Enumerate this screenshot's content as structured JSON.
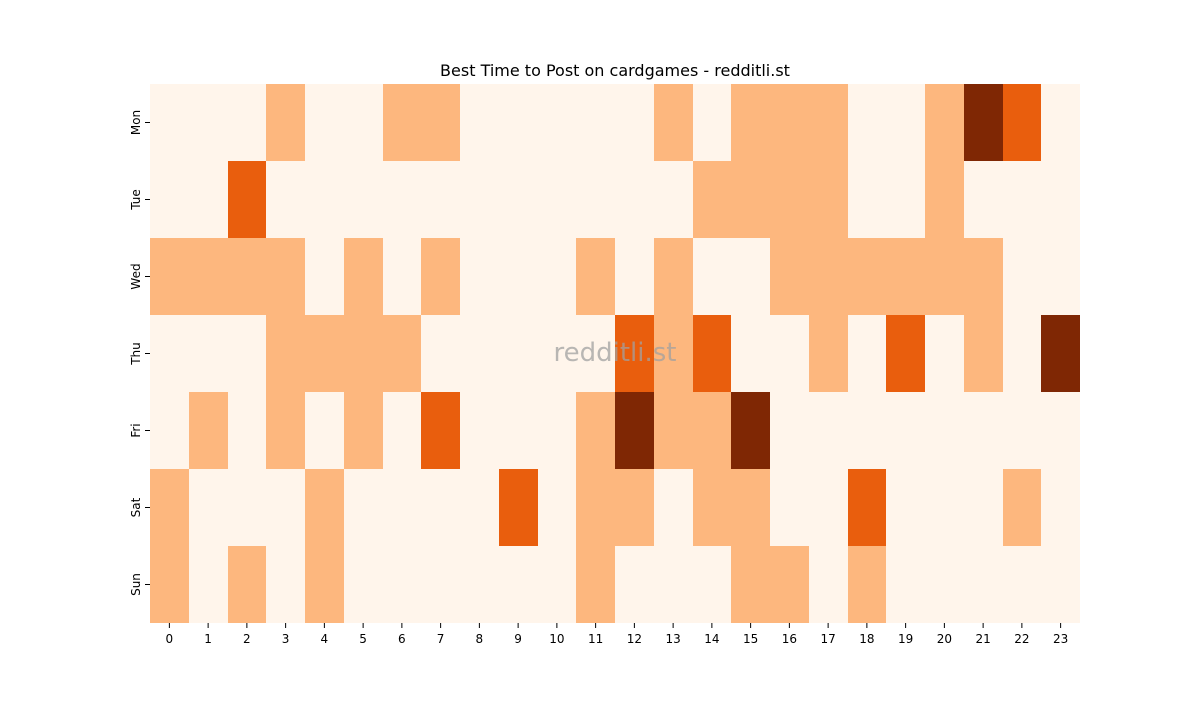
{
  "chart_data": {
    "type": "heatmap",
    "title": "Best Time to Post on cardgames - redditli.st",
    "xlabel": "",
    "ylabel": "",
    "watermark": "redditli.st",
    "x_categories": [
      "0",
      "1",
      "2",
      "3",
      "4",
      "5",
      "6",
      "7",
      "8",
      "9",
      "10",
      "11",
      "12",
      "13",
      "14",
      "15",
      "16",
      "17",
      "18",
      "19",
      "20",
      "21",
      "22",
      "23"
    ],
    "y_categories": [
      "Mon",
      "Tue",
      "Wed",
      "Thu",
      "Fri",
      "Sat",
      "Sun"
    ],
    "values": [
      [
        0,
        0,
        0,
        1,
        0,
        0,
        1,
        1,
        0,
        0,
        0,
        0,
        0,
        1,
        0,
        1,
        1,
        1,
        0,
        0,
        1,
        3,
        2,
        0
      ],
      [
        0,
        0,
        2,
        0,
        0,
        0,
        0,
        0,
        0,
        0,
        0,
        0,
        0,
        0,
        1,
        1,
        1,
        1,
        0,
        0,
        1,
        0,
        0,
        0
      ],
      [
        1,
        1,
        1,
        1,
        0,
        1,
        0,
        1,
        0,
        0,
        0,
        1,
        0,
        1,
        0,
        0,
        1,
        1,
        1,
        1,
        1,
        1,
        0,
        0
      ],
      [
        0,
        0,
        0,
        1,
        1,
        1,
        1,
        0,
        0,
        0,
        0,
        0,
        2,
        1,
        2,
        0,
        0,
        1,
        0,
        2,
        0,
        1,
        0,
        3
      ],
      [
        0,
        1,
        0,
        1,
        0,
        1,
        0,
        2,
        0,
        0,
        0,
        1,
        3,
        1,
        1,
        3,
        0,
        0,
        0,
        0,
        0,
        0,
        0,
        0
      ],
      [
        1,
        0,
        0,
        0,
        1,
        0,
        0,
        0,
        0,
        2,
        0,
        1,
        1,
        0,
        1,
        1,
        0,
        0,
        2,
        0,
        0,
        0,
        1,
        0
      ],
      [
        1,
        0,
        1,
        0,
        1,
        0,
        0,
        0,
        0,
        0,
        0,
        1,
        0,
        0,
        0,
        1,
        1,
        0,
        1,
        0,
        0,
        0,
        0,
        0
      ]
    ],
    "value_range": [
      0,
      3
    ],
    "colormap": [
      "#fff5eb",
      "#fdb77e",
      "#e95e0d",
      "#7f2704"
    ],
    "legend": "none",
    "grid": false
  }
}
